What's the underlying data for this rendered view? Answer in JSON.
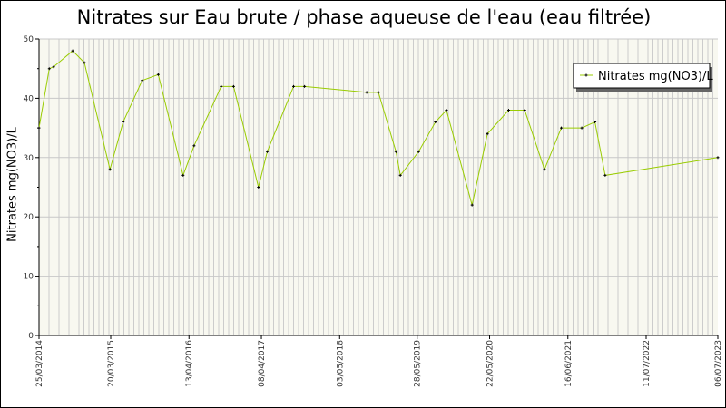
{
  "chart_data": {
    "type": "line",
    "title": "Nitrates sur Eau brute / phase aqueuse de l'eau (eau filtrée)",
    "xlabel": "",
    "ylabel": "Nitrates mg(NO3)/L",
    "ylim": [
      0,
      50
    ],
    "xlim": [
      2014.23,
      2023.51
    ],
    "yticks": [
      "0",
      "10",
      "20",
      "30",
      "40",
      "50"
    ],
    "xticks": [
      {
        "label": "25/03/2014",
        "x": 2014.23
      },
      {
        "label": "20/03/2015",
        "x": 2015.21
      },
      {
        "label": "13/04/2016",
        "x": 2016.28
      },
      {
        "label": "08/04/2017",
        "x": 2017.27
      },
      {
        "label": "03/05/2018",
        "x": 2018.34
      },
      {
        "label": "28/05/2019",
        "x": 2019.4
      },
      {
        "label": "22/05/2020",
        "x": 2020.39
      },
      {
        "label": "16/06/2021",
        "x": 2021.46
      },
      {
        "label": "11/07/2022",
        "x": 2022.53
      },
      {
        "label": "06/07/2023",
        "x": 2023.51
      }
    ],
    "grid": true,
    "legend_position": "top-right",
    "series": [
      {
        "name": "Nitrates mg(NO3)/L",
        "color": "#99cc00",
        "x": [
          2014.23,
          2014.37,
          2014.43,
          2014.69,
          2014.85,
          2015.2,
          2015.38,
          2015.64,
          2015.86,
          2016.2,
          2016.35,
          2016.72,
          2016.89,
          2017.23,
          2017.35,
          2017.71,
          2017.86,
          2018.71,
          2018.87,
          2019.11,
          2019.17,
          2019.42,
          2019.65,
          2019.8,
          2020.15,
          2020.36,
          2020.65,
          2020.87,
          2021.14,
          2021.37,
          2021.65,
          2021.83,
          2021.97,
          2023.51
        ],
        "values": [
          35,
          45,
          45.3,
          48,
          46,
          28,
          36,
          43,
          44,
          27,
          32,
          42,
          42,
          25,
          31,
          42,
          42,
          41,
          41,
          31,
          27,
          31,
          36,
          38,
          22,
          34,
          38,
          38,
          28,
          35,
          35,
          36,
          27,
          30
        ]
      }
    ]
  }
}
